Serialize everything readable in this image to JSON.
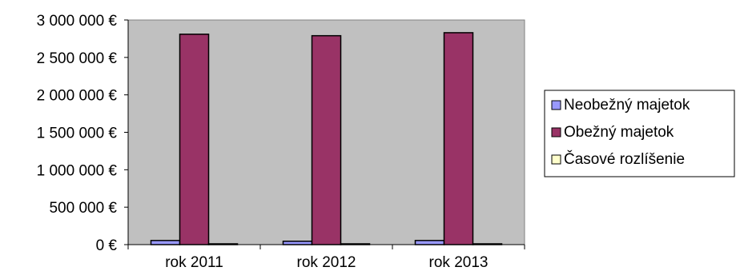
{
  "chart_data": {
    "type": "bar",
    "title": "",
    "xlabel": "",
    "ylabel": "",
    "categories": [
      "rok 2011",
      "rok 2012",
      "rok 2013"
    ],
    "ylim": [
      0,
      3000000
    ],
    "y_ticks": [
      0,
      500000,
      1000000,
      1500000,
      2000000,
      2500000,
      3000000
    ],
    "y_tick_labels": [
      "0 €",
      "500 000 €",
      "1 000 000 €",
      "1 500 000 €",
      "2 000 000 €",
      "2 500 000 €",
      "3 000 000 €"
    ],
    "grid": false,
    "legend_position": "right",
    "plot_background": "#c0c0c0",
    "series": [
      {
        "name": "Neobežný majetok",
        "color": "#9999ff",
        "values": [
          55000,
          45000,
          55000
        ]
      },
      {
        "name": "Obežný majetok",
        "color": "#993366",
        "values": [
          2810000,
          2790000,
          2830000
        ]
      },
      {
        "name": "Časové rozlíšenie",
        "color": "#ffffcc",
        "values": [
          8000,
          7000,
          8000
        ]
      }
    ]
  }
}
